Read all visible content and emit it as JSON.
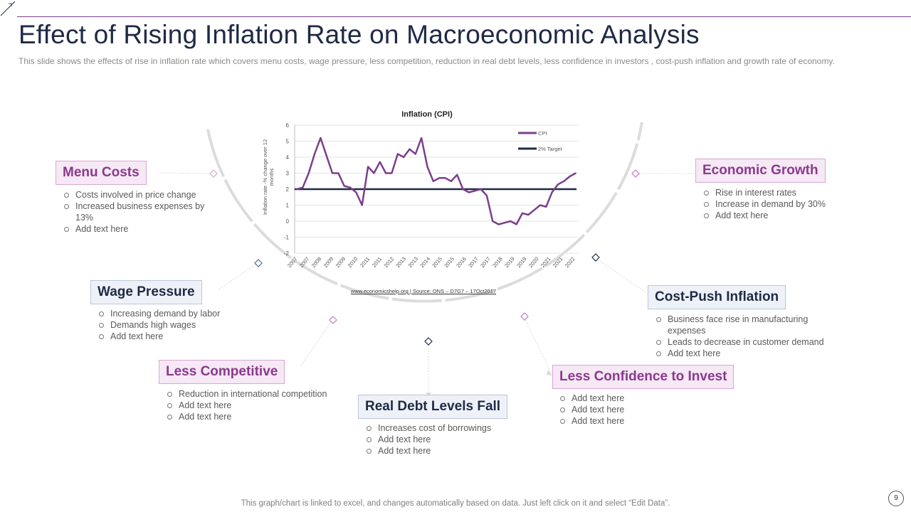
{
  "header": {
    "title": "Effect of Rising Inflation Rate on Macroeconomic  Analysis",
    "subtitle": "This slide shows the effects of rise in inflation rate which covers menu costs, wage pressure, less competition, reduction in real debt levels, less confidence in investors , cost-push inflation and growth rate of economy."
  },
  "sections": {
    "menu_costs": {
      "title": "Menu Costs",
      "items": [
        "Costs involved  in price change",
        "Increased business expenses by 13%",
        "Add text here"
      ]
    },
    "wage_pressure": {
      "title": "Wage Pressure",
      "items": [
        "Increasing demand by labor",
        "Demands high wages",
        "Add text here"
      ]
    },
    "less_competitive": {
      "title": "Less Competitive",
      "items": [
        "Reduction in international competition",
        "Add text here",
        "Add text here"
      ]
    },
    "real_debt": {
      "title": "Real Debt Levels Fall",
      "items": [
        "Increases cost of borrowings",
        "Add text here",
        "Add text here"
      ]
    },
    "less_confidence": {
      "title": "Less Confidence to Invest",
      "items": [
        "Add text here",
        "Add text here",
        "Add text here"
      ]
    },
    "cost_push": {
      "title": "Cost-Push Inflation",
      "items": [
        "Business face rise in manufacturing expenses",
        "Leads to decrease in customer demand",
        "Add text here"
      ]
    },
    "economic_growth": {
      "title": "Economic Growth",
      "items": [
        "Rise in interest rates",
        "Increase in demand   by 30%",
        "Add text here"
      ]
    }
  },
  "chart_data": {
    "type": "line",
    "title": "Inflation (CPI)",
    "ylabel": "Inflation rate -% change over 12 months",
    "xlabel": "",
    "ylim": [
      -2,
      6
    ],
    "yticks": [
      -2,
      -1,
      0,
      1,
      2,
      3,
      4,
      5,
      6
    ],
    "x_start": 2007,
    "x_step": 0.25,
    "xtick_labels": [
      "2007",
      "2007",
      "2008",
      "2009",
      "2009",
      "2010",
      "2011",
      "2011",
      "2012",
      "2013",
      "2013",
      "2014",
      "2015",
      "2015",
      "2016",
      "2017",
      "2017",
      "2018",
      "2019",
      "2019",
      "2020",
      "2021",
      "2021",
      "2022"
    ],
    "series": [
      {
        "name": "CPI",
        "color": "#7b3f8c",
        "values": [
          2.0,
          2.1,
          3.0,
          4.2,
          5.2,
          4.1,
          3.0,
          3.0,
          2.2,
          2.1,
          1.8,
          1.0,
          3.4,
          3.0,
          3.7,
          3.0,
          3.0,
          4.2,
          4.0,
          4.5,
          4.2,
          5.2,
          3.4,
          2.5,
          2.7,
          2.7,
          2.5,
          2.9,
          2.0,
          1.8,
          1.9,
          2.0,
          1.6,
          0.0,
          -0.2,
          -0.1,
          0.0,
          -0.2,
          0.5,
          0.4,
          0.7,
          1.0,
          0.9,
          1.8,
          2.3,
          2.5,
          2.8,
          3.0
        ]
      },
      {
        "name": "2% Target",
        "color": "#1f2a44",
        "values": [
          2,
          2
        ]
      }
    ],
    "source_text": "www.economicshelp.org  | Source: ONS – D7G7 – 17Oct2017"
  },
  "footer": {
    "note": "This graph/chart is linked to excel, and changes automatically based on data. Just left click on it and select “Edit Data”.",
    "page_number": "9"
  },
  "colors": {
    "purple": "#7b3f8c",
    "navy": "#1f2a44",
    "arc": "#dcdcdc"
  }
}
